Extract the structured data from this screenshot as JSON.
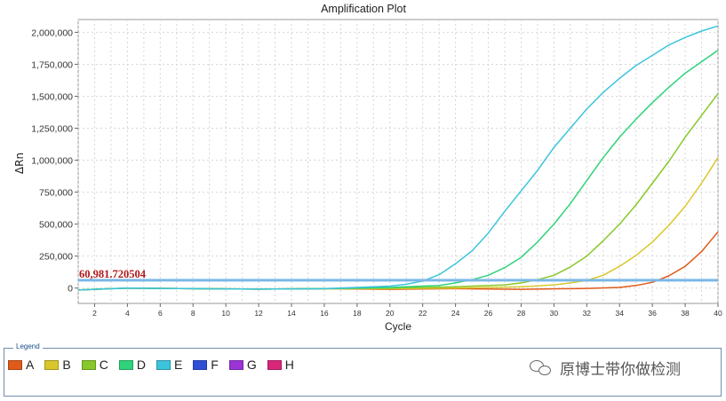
{
  "chart_data": {
    "type": "line",
    "title": "Amplification Plot",
    "xlabel": "Cycle",
    "ylabel": "ΔRn",
    "xlim": [
      1,
      40
    ],
    "ylim": [
      -120000,
      2100000
    ],
    "x_ticks": [
      2,
      4,
      6,
      8,
      10,
      12,
      14,
      16,
      18,
      20,
      22,
      24,
      26,
      28,
      30,
      32,
      34,
      36,
      38,
      40
    ],
    "y_ticks": [
      0,
      250000,
      500000,
      750000,
      1000000,
      1250000,
      1500000,
      1750000,
      2000000
    ],
    "y_tick_labels": [
      "0",
      "250,000",
      "500,000",
      "750,000",
      "1,000,000",
      "1,250,000",
      "1,500,000",
      "1,750,000",
      "2,000,000"
    ],
    "grid": true,
    "threshold": {
      "value": 60981.720504,
      "label": "60,981.720504",
      "color": "#7ab8e6"
    },
    "series": [
      {
        "name": "A",
        "color": "#e05a1a",
        "x": [
          1,
          4,
          8,
          12,
          16,
          20,
          24,
          28,
          32,
          34,
          35,
          36,
          37,
          38,
          39,
          40
        ],
        "y": [
          -15000,
          0,
          -5000,
          -8000,
          -5000,
          -10000,
          -5000,
          -10000,
          -3000,
          5000,
          20000,
          45000,
          95000,
          170000,
          285000,
          440000
        ]
      },
      {
        "name": "B",
        "color": "#d9c72a",
        "x": [
          1,
          4,
          8,
          12,
          16,
          20,
          24,
          28,
          30,
          31,
          32,
          33,
          34,
          35,
          36,
          37,
          38,
          39,
          40
        ],
        "y": [
          -15000,
          0,
          -5000,
          -8000,
          -5000,
          -5000,
          0,
          10000,
          25000,
          40000,
          60000,
          100000,
          170000,
          255000,
          360000,
          490000,
          640000,
          820000,
          1020000
        ]
      },
      {
        "name": "C",
        "color": "#88c82a",
        "x": [
          1,
          4,
          8,
          12,
          16,
          20,
          24,
          27,
          28,
          29,
          30,
          31,
          32,
          33,
          34,
          35,
          36,
          37,
          38,
          39,
          40
        ],
        "y": [
          -15000,
          0,
          -5000,
          -8000,
          -5000,
          0,
          10000,
          25000,
          40000,
          65000,
          100000,
          165000,
          250000,
          370000,
          500000,
          650000,
          820000,
          990000,
          1180000,
          1350000,
          1520000
        ]
      },
      {
        "name": "D",
        "color": "#2ed37a",
        "x": [
          1,
          4,
          8,
          12,
          16,
          20,
          23,
          24,
          25,
          26,
          27,
          28,
          29,
          30,
          31,
          32,
          33,
          34,
          35,
          36,
          37,
          38,
          39,
          40
        ],
        "y": [
          -15000,
          0,
          -5000,
          -8000,
          -5000,
          5000,
          20000,
          40000,
          65000,
          100000,
          160000,
          240000,
          360000,
          500000,
          660000,
          840000,
          1020000,
          1180000,
          1320000,
          1450000,
          1570000,
          1680000,
          1770000,
          1860000
        ]
      },
      {
        "name": "E",
        "color": "#3cc4dc",
        "x": [
          1,
          4,
          8,
          12,
          16,
          18,
          20,
          21,
          22,
          23,
          24,
          25,
          26,
          27,
          28,
          29,
          30,
          31,
          32,
          33,
          34,
          35,
          36,
          37,
          38,
          39,
          40
        ],
        "y": [
          -15000,
          0,
          -5000,
          -8000,
          -5000,
          5000,
          15000,
          30000,
          55000,
          105000,
          190000,
          290000,
          430000,
          600000,
          760000,
          920000,
          1100000,
          1250000,
          1400000,
          1530000,
          1640000,
          1740000,
          1820000,
          1900000,
          1960000,
          2010000,
          2050000
        ]
      }
    ],
    "legend": {
      "title": "Legend",
      "placement": "bottom",
      "items": [
        {
          "label": "A",
          "color": "#e05a1a"
        },
        {
          "label": "B",
          "color": "#d9c72a"
        },
        {
          "label": "C",
          "color": "#88c82a"
        },
        {
          "label": "D",
          "color": "#2ed37a"
        },
        {
          "label": "E",
          "color": "#3cc4dc"
        },
        {
          "label": "F",
          "color": "#2f4fd6"
        },
        {
          "label": "G",
          "color": "#9a34d6"
        },
        {
          "label": "H",
          "color": "#d8267a"
        }
      ]
    }
  },
  "watermark": {
    "text": "原博士带你做检测",
    "icon": "wechat-icon"
  }
}
